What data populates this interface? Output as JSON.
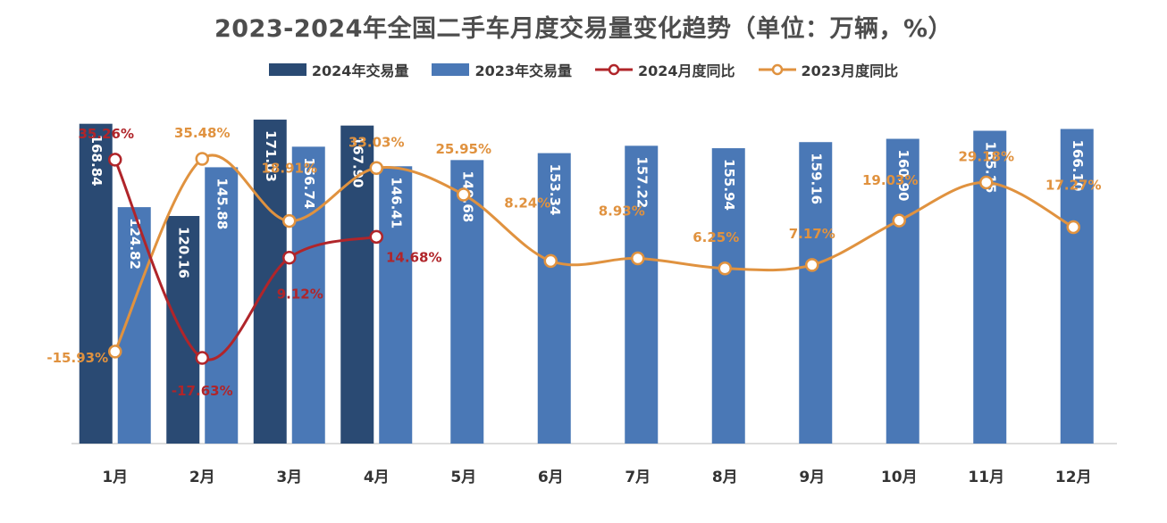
{
  "chart_data": {
    "type": "bar",
    "title": "2023-2024年全国二手车月度交易量变化趋势（单位：万辆，%）",
    "categories": [
      "1月",
      "2月",
      "3月",
      "4月",
      "5月",
      "6月",
      "7月",
      "8月",
      "9月",
      "10月",
      "11月",
      "12月"
    ],
    "series": [
      {
        "name": "2024年交易量",
        "kind": "bar",
        "color": "#2a4a73",
        "values": [
          168.84,
          120.16,
          171.03,
          167.9,
          null,
          null,
          null,
          null,
          null,
          null,
          null,
          null
        ],
        "labels": [
          "168.84",
          "120.16",
          "171.03",
          "167.90",
          "",
          "",
          "",
          "",
          "",
          "",
          "",
          ""
        ]
      },
      {
        "name": "2023年交易量",
        "kind": "bar",
        "color": "#4a78b6",
        "values": [
          124.82,
          145.88,
          156.74,
          146.41,
          149.68,
          153.34,
          157.22,
          155.94,
          159.16,
          160.9,
          165.15,
          166.1
        ],
        "labels": [
          "124.82",
          "145.88",
          "156.74",
          "146.41",
          "149.68",
          "153.34",
          "157.22",
          "155.94",
          "159.16",
          "160.90",
          "165.15",
          "166.10"
        ]
      },
      {
        "name": "2024月度同比",
        "kind": "line",
        "color": "#b0252a",
        "values": [
          35.26,
          -17.63,
          9.12,
          14.68,
          null,
          null,
          null,
          null,
          null,
          null,
          null,
          null
        ],
        "labels": [
          "35.26%",
          "-17.63%",
          "9.12%",
          "14.68%",
          "",
          "",
          "",
          "",
          "",
          "",
          "",
          ""
        ]
      },
      {
        "name": "2023月度同比",
        "kind": "line",
        "color": "#e0923f",
        "values": [
          -15.93,
          35.48,
          18.91,
          33.03,
          25.95,
          8.24,
          8.93,
          6.25,
          7.17,
          19.03,
          29.18,
          17.27
        ],
        "labels": [
          "-15.93%",
          "35.48%",
          "18.91%",
          "33.03%",
          "25.95%",
          "8.24%",
          "8.93%",
          "6.25%",
          "7.17%",
          "19.03%",
          "29.18%",
          "17.27%"
        ]
      }
    ],
    "ylim_bars": [
      0,
      180
    ],
    "ylim_lines": [
      -25,
      45
    ],
    "grid": false,
    "legend_position": "top"
  }
}
